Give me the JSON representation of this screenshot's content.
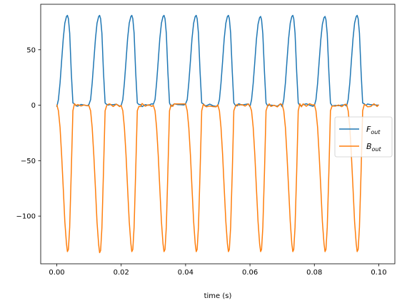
{
  "chart_data": {
    "type": "line",
    "title": "",
    "xlabel": "time (s)",
    "ylabel": "",
    "xlim": [
      -0.005,
      0.105
    ],
    "ylim": [
      -143,
      91
    ],
    "xticks": [
      0.0,
      0.02,
      0.04,
      0.06,
      0.08,
      0.1
    ],
    "xtick_labels": [
      "0.00",
      "0.02",
      "0.04",
      "0.06",
      "0.08",
      "0.10"
    ],
    "yticks": [
      50,
      0,
      -50,
      -100
    ],
    "ytick_labels": [
      "50",
      "0",
      "−50",
      "−100"
    ],
    "grid": false,
    "legend_position": "center-right",
    "period_s": 0.01,
    "series": [
      {
        "name": "F",
        "name_subscript": "out",
        "color": "#1f77b4",
        "x": [
          0.0,
          0.0005,
          0.001,
          0.0015,
          0.002,
          0.0025,
          0.003,
          0.0033,
          0.0036,
          0.004,
          0.0045,
          0.005,
          0.0055,
          0.006,
          0.0065,
          0.0075,
          0.0085,
          0.0095,
          0.01
        ],
        "y": [
          0,
          5,
          20,
          40,
          60,
          74,
          80,
          81,
          78,
          65,
          30,
          2,
          0,
          0,
          0,
          0,
          0,
          0,
          0
        ],
        "peaks": [
          81,
          81,
          81,
          81,
          81,
          81,
          80,
          81,
          80,
          81
        ]
      },
      {
        "name": "B",
        "name_subscript": "out",
        "color": "#ff7f0e",
        "x": [
          0.0,
          0.0005,
          0.001,
          0.0015,
          0.002,
          0.0025,
          0.003,
          0.0033,
          0.0036,
          0.004,
          0.0045,
          0.005,
          0.0055,
          0.006,
          0.0065,
          0.0075,
          0.0085,
          0.0095,
          0.01
        ],
        "y": [
          0,
          -5,
          -20,
          -45,
          -75,
          -105,
          -125,
          -132,
          -130,
          -110,
          -60,
          -5,
          0,
          0,
          0,
          0,
          0,
          0,
          0
        ],
        "troughs": [
          -132,
          -133,
          -132,
          -132,
          -132,
          -132,
          -132,
          -132,
          -132,
          -132
        ]
      }
    ]
  }
}
